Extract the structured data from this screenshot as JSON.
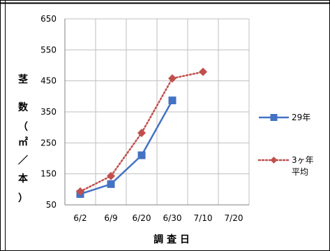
{
  "chart_data": {
    "type": "line",
    "categories": [
      "6/2",
      "6/9",
      "6/20",
      "6/30",
      "7/10",
      "7/20"
    ],
    "ylim": [
      50,
      650
    ],
    "yticks": [
      50,
      150,
      250,
      350,
      450,
      550,
      650
    ],
    "xlabel": "調 査 日",
    "ylabel_chars": [
      "茎",
      "数",
      "（",
      "㎡",
      "／",
      "本",
      "）"
    ],
    "grid": true,
    "legend_position": "right",
    "series": [
      {
        "name": "29年",
        "values": [
          85,
          117,
          210,
          387,
          null,
          null
        ],
        "color": "#4472c4",
        "marker": "square",
        "line_style": "solid"
      },
      {
        "name_lines": [
          "3ヶ年",
          "平均"
        ],
        "values": [
          93,
          143,
          282,
          458,
          479,
          null
        ],
        "color": "#c0504d",
        "marker": "diamond",
        "line_style": "dotted"
      }
    ]
  }
}
